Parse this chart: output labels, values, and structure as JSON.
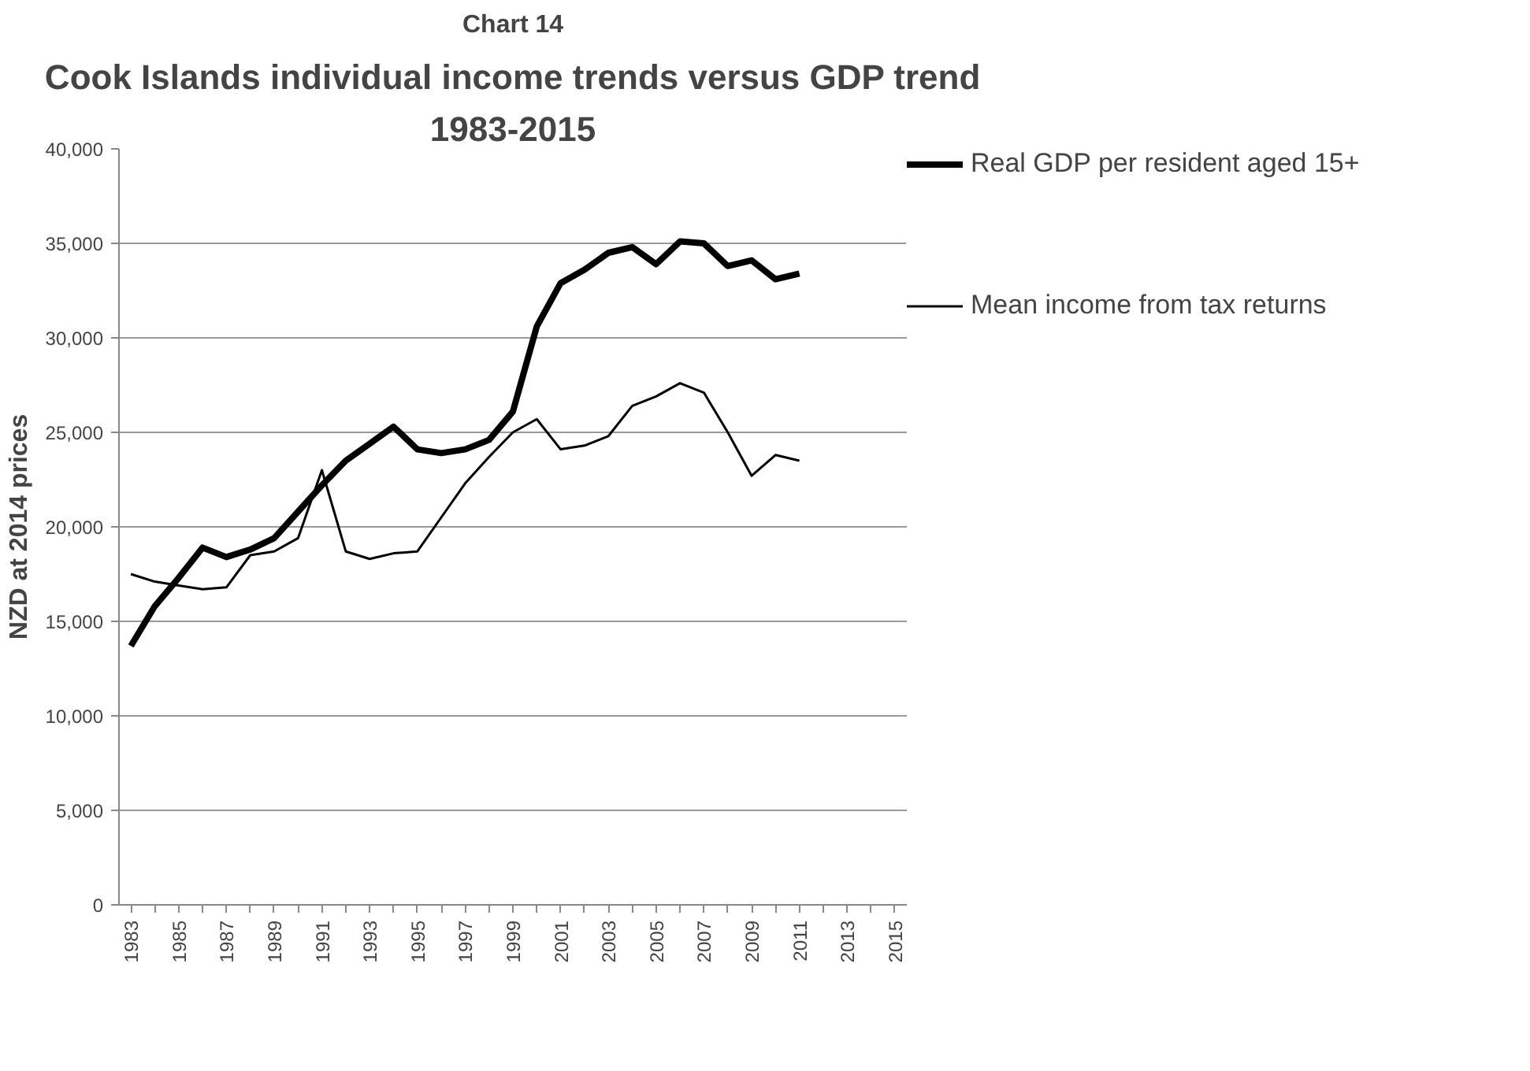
{
  "chart_data": {
    "type": "line",
    "title": "Cook Islands individual income trends versus GDP trend",
    "subtitle": "1983-2015",
    "ylabel": "NZD at 2014 prices",
    "annotations": [
      "Chart 14"
    ],
    "categories": [
      "1983",
      null,
      "1985",
      null,
      "1987",
      null,
      "1989",
      null,
      "1991",
      null,
      "1993",
      null,
      "1995",
      null,
      "1997",
      null,
      "1999",
      null,
      "2001",
      null,
      "2003",
      null,
      "2005",
      null,
      "2007",
      null,
      "2009",
      null,
      "2011",
      null,
      "2013",
      null,
      "2015"
    ],
    "series": [
      {
        "name": "Real GDP per resident aged 15+",
        "color": "#000000",
        "values": [
          13700,
          15800,
          17300,
          18900,
          18400,
          18800,
          19400,
          20800,
          22200,
          23500,
          24400,
          25300,
          24100,
          23900,
          24100,
          24600,
          26100,
          30600,
          32900,
          33600,
          34500,
          34800,
          33900,
          35100,
          35000,
          33800,
          34100,
          33100,
          33400,
          null,
          null,
          null,
          null
        ]
      },
      {
        "name": "Mean income from tax returns",
        "color": "#000000",
        "values": [
          17500,
          17100,
          16900,
          16700,
          16800,
          18500,
          18700,
          19400,
          23000,
          18700,
          18300,
          18600,
          18700,
          20500,
          22300,
          23700,
          25000,
          25700,
          24100,
          24300,
          24800,
          26400,
          26900,
          27600,
          27100,
          25000,
          22700,
          23800,
          23500,
          null,
          null,
          null,
          null
        ]
      }
    ],
    "ylim": [
      0,
      40000
    ],
    "yticks": [
      {
        "value": 0,
        "label": "0"
      },
      {
        "value": 5000,
        "label": "5,000"
      },
      {
        "value": 10000,
        "label": "10,000"
      },
      {
        "value": 15000,
        "label": "15,000"
      },
      {
        "value": 20000,
        "label": "20,000"
      },
      {
        "value": 25000,
        "label": "25,000"
      },
      {
        "value": 30000,
        "label": "30,000"
      },
      {
        "value": 35000,
        "label": "35,000"
      },
      {
        "value": 40000,
        "label": "40,000"
      }
    ],
    "grid": "y",
    "legend": "right",
    "marker": "none",
    "line_style": "solid"
  }
}
